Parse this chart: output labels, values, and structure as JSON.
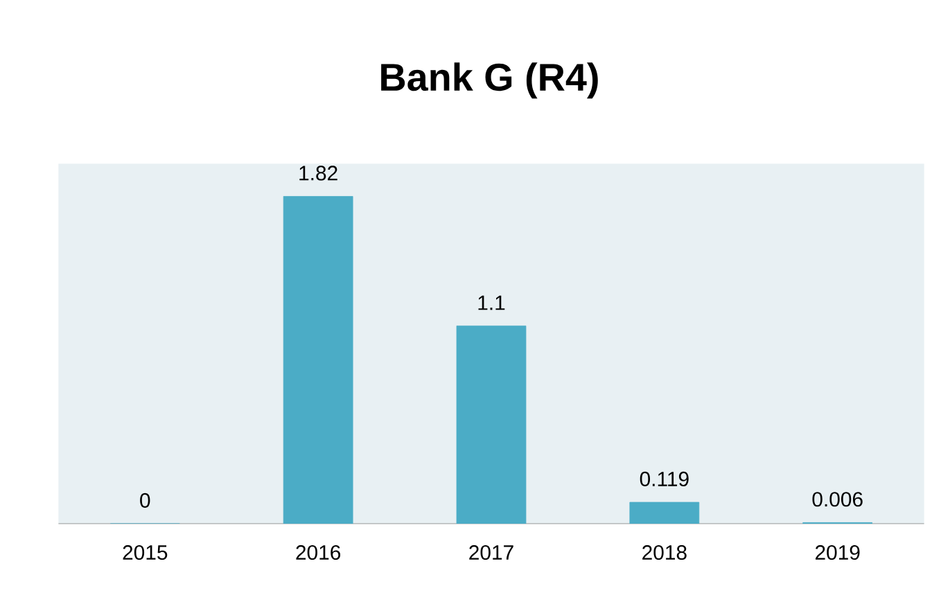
{
  "chart_data": {
    "type": "bar",
    "title": "Bank G (R4)",
    "categories": [
      "2015",
      "2016",
      "2017",
      "2018",
      "2019"
    ],
    "values": [
      0,
      1.82,
      1.1,
      0.119,
      0.006
    ],
    "color": "#4bacc6",
    "data_labels": true
  }
}
